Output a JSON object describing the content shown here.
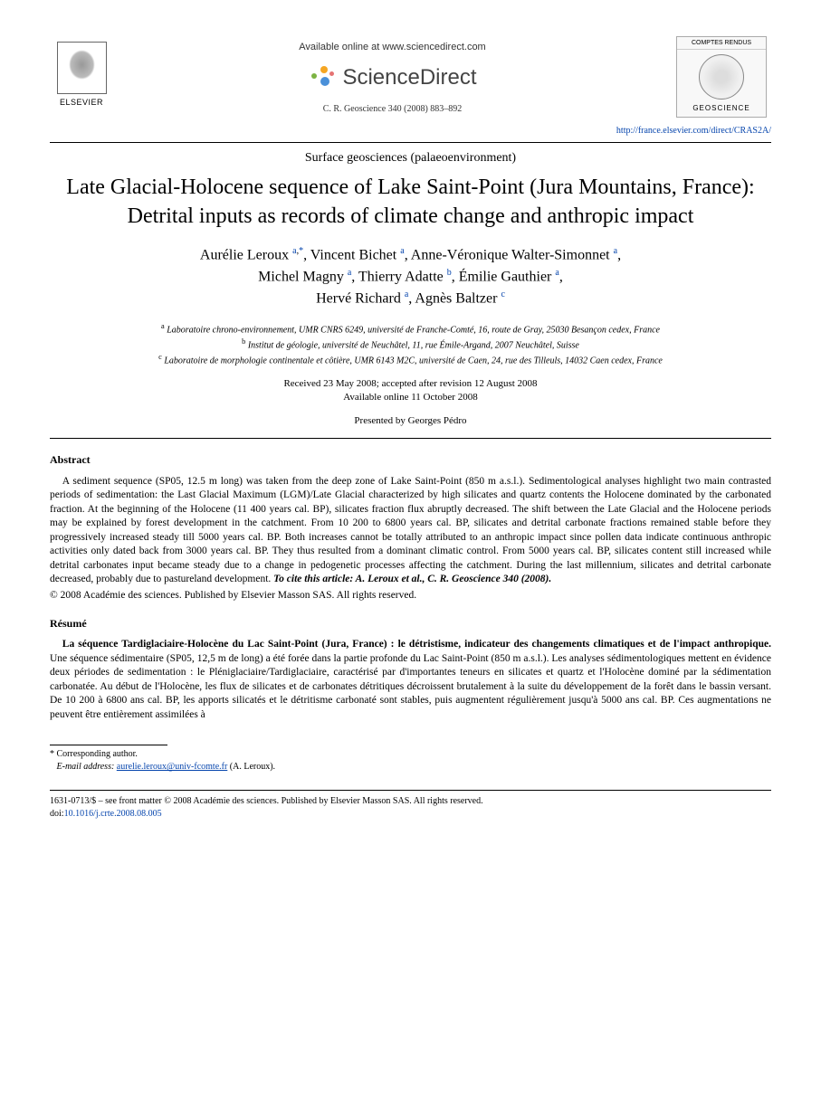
{
  "header": {
    "elsevier_label": "ELSEVIER",
    "available_text": "Available online at www.sciencedirect.com",
    "sd_brand": "ScienceDirect",
    "journal_ref": "C. R. Geoscience 340 (2008) 883–892",
    "journal_logo_top": "COMPTES RENDUS",
    "journal_logo_bottom": "GEOSCIENCE",
    "url": "http://france.elsevier.com/direct/CRAS2A/"
  },
  "article": {
    "subject": "Surface geosciences (palaeoenvironment)",
    "title": "Late Glacial-Holocene sequence of Lake Saint-Point (Jura Mountains, France): Detrital inputs as records of climate change and anthropic impact",
    "authors_html": "Aurélie Leroux <sup><a href='#'>a</a>,<a href='#'>*</a></sup>, Vincent Bichet <sup><a href='#'>a</a></sup>, Anne-Véronique Walter-Simonnet <sup><a href='#'>a</a></sup>,<br>Michel Magny <sup><a href='#'>a</a></sup>, Thierry Adatte <sup><a href='#'>b</a></sup>, Émilie Gauthier <sup><a href='#'>a</a></sup>,<br>Hervé Richard <sup><a href='#'>a</a></sup>, Agnès Baltzer <sup><a href='#'>c</a></sup>",
    "affiliation_a": "Laboratoire chrono-environnement, UMR CNRS 6249, université de Franche-Comté, 16, route de Gray, 25030 Besançon cedex, France",
    "affiliation_b": "Institut de géologie, université de Neuchâtel, 11, rue Émile-Argand, 2007 Neuchâtel, Suisse",
    "affiliation_c": "Laboratoire de morphologie continentale et côtière, UMR 6143 M2C, université de Caen, 24, rue des Tilleuls, 14032 Caen cedex, France",
    "received": "Received 23 May 2008; accepted after revision 12 August 2008",
    "online": "Available online 11 October 2008",
    "presented": "Presented by Georges Pédro"
  },
  "abstract": {
    "heading": "Abstract",
    "body": "A sediment sequence (SP05, 12.5 m long) was taken from the deep zone of Lake Saint-Point (850 m a.s.l.). Sedimentological analyses highlight two main contrasted periods of sedimentation: the Last Glacial Maximum (LGM)/Late Glacial characterized by high silicates and quartz contents the Holocene dominated by the carbonated fraction. At the beginning of the Holocene (11 400 years cal. BP), silicates fraction flux abruptly decreased. The shift between the Late Glacial and the Holocene periods may be explained by forest development in the catchment. From 10 200 to 6800 years cal. BP, silicates and detrital carbonate fractions remained stable before they progressively increased steady till 5000 years cal. BP. Both increases cannot be totally attributed to an anthropic impact since pollen data indicate continuous anthropic activities only dated back from 3000 years cal. BP. They thus resulted from a dominant climatic control. From 5000 years cal. BP, silicates content still increased while detrital carbonates input became steady due to a change in pedogenetic processes affecting the catchment. During the last millennium, silicates and detrital carbonate decreased, probably due to pastureland development.",
    "cite": "To cite this article: A. Leroux et al., C. R. Geoscience 340 (2008).",
    "copyright": "© 2008 Académie des sciences. Published by Elsevier Masson SAS. All rights reserved."
  },
  "resume": {
    "heading": "Résumé",
    "title": "La séquence Tardiglaciaire-Holocène du Lac Saint-Point (Jura, France) : le détristisme, indicateur des changements climatiques et de l'impact anthropique.",
    "body": " Une séquence sédimentaire (SP05, 12,5 m de long) a été forée dans la partie profonde du Lac Saint-Point (850 m a.s.l.). Les analyses sédimentologiques mettent en évidence deux périodes de sedimentation : le Pléniglaciaire/Tardiglaciaire, caractérisé par d'importantes teneurs en silicates et quartz et l'Holocène dominé par la sédimentation carbonatée. Au début de l'Holocène, les flux de silicates et de carbonates détritiques décroissent brutalement à la suite du développement de la forêt dans le bassin versant. De 10 200 à 6800 ans cal. BP, les apports silicatés et le détritisme carbonaté sont stables, puis augmentent régulièrement jusqu'à 5000 ans cal. BP. Ces augmentations ne peuvent être entièrement assimilées à"
  },
  "footnote": {
    "corresponding": "* Corresponding author.",
    "email_label": "E-mail address:",
    "email": "aurelie.leroux@univ-fcomte.fr",
    "email_author": "(A. Leroux)."
  },
  "footer": {
    "issn": "1631-0713/$ – see front matter © 2008 Académie des sciences. Published by Elsevier Masson SAS. All rights reserved.",
    "doi_label": "doi:",
    "doi": "10.1016/j.crte.2008.08.005"
  },
  "colors": {
    "link": "#0645ad",
    "text": "#000000",
    "bg": "#ffffff"
  }
}
